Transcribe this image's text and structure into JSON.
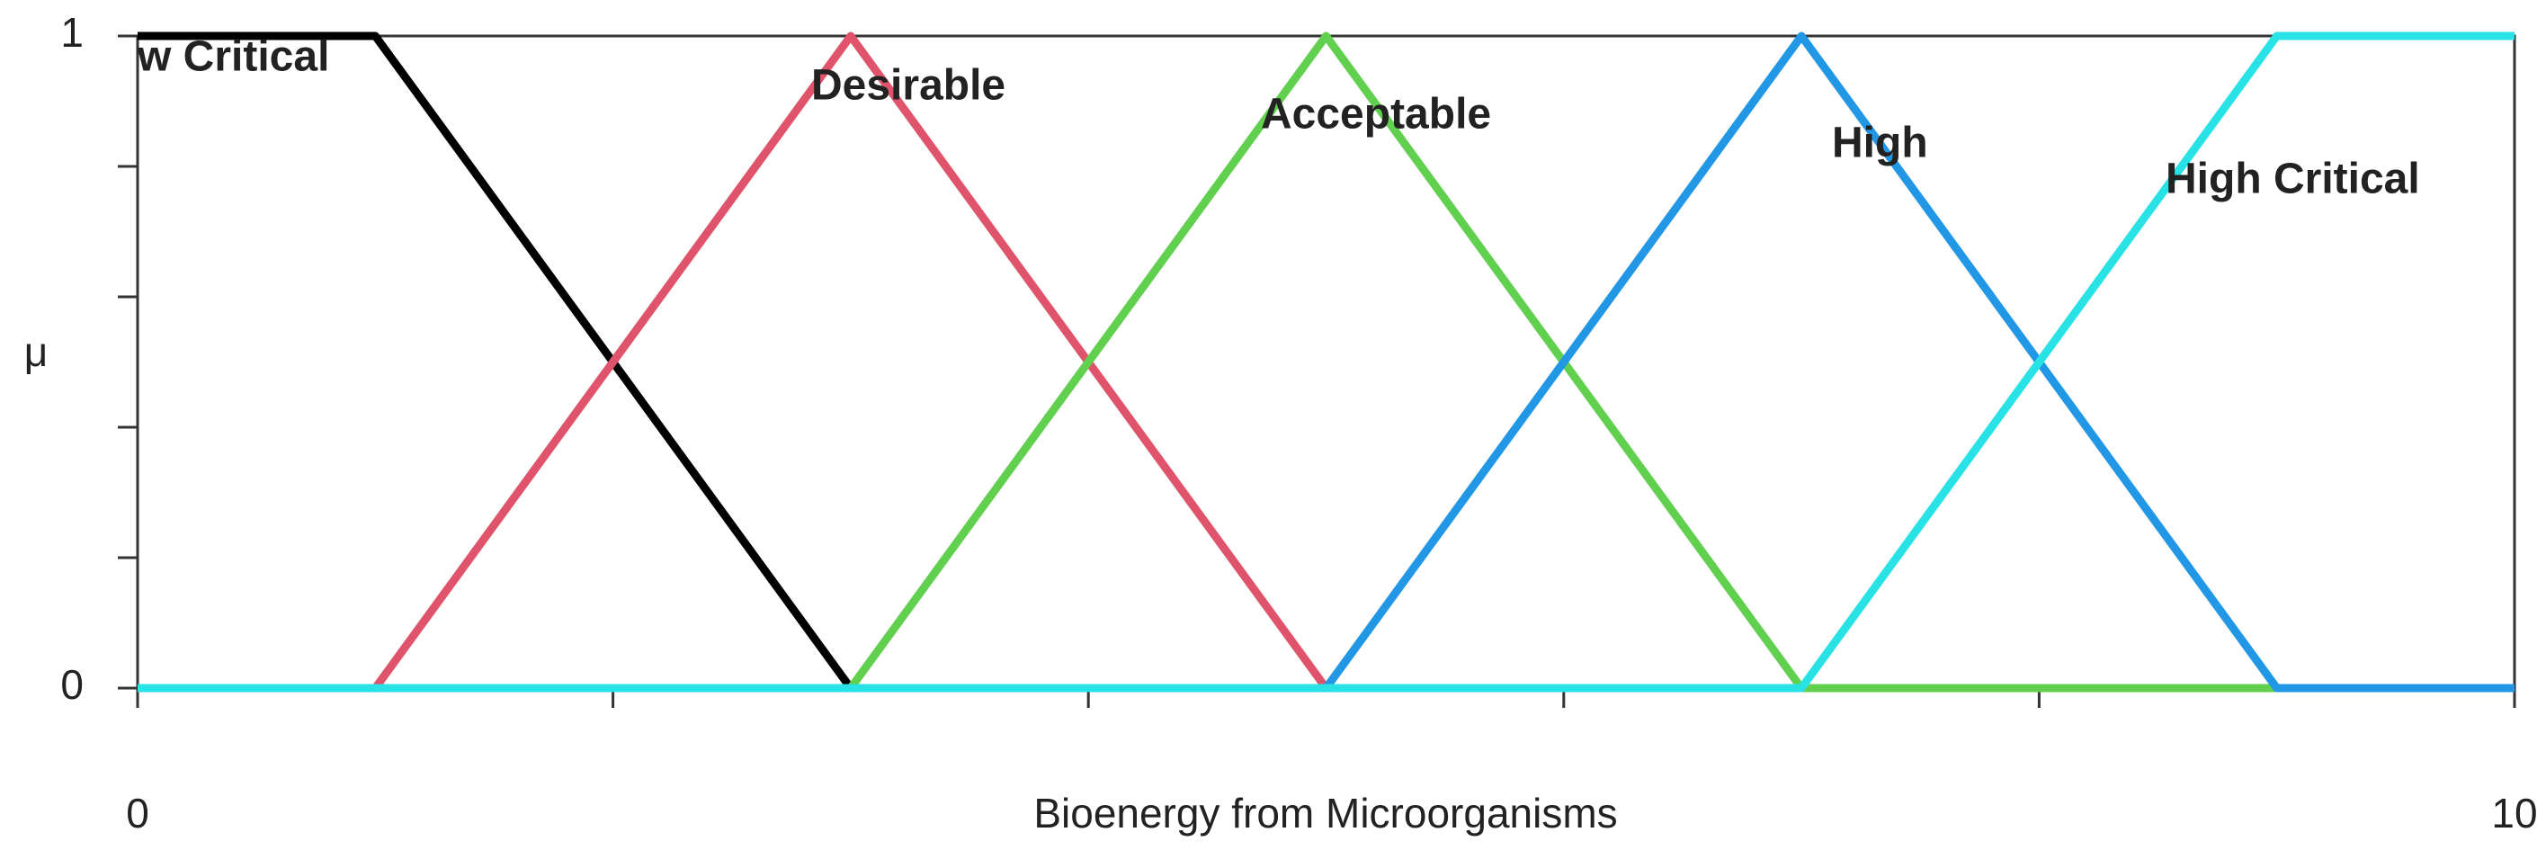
{
  "chart_data": {
    "type": "line",
    "x_label": "Bioenergy from Microorganisms",
    "y_label": "μ",
    "xlim": [
      0,
      10
    ],
    "xticks": [
      0,
      {
        "value": 2,
        "label": null
      },
      {
        "value": 4,
        "label": null
      },
      {
        "value": 6,
        "label": null
      },
      {
        "value": 8,
        "label": null
      },
      10
    ],
    "ylim": [
      0,
      1
    ],
    "yticks": [
      0,
      {
        "value": 0.2,
        "label": null
      },
      {
        "value": 0.4,
        "label": null
      },
      {
        "value": 0.6,
        "label": null
      },
      {
        "value": 0.8,
        "label": null
      },
      1
    ],
    "series": [
      {
        "name": "w Critical",
        "color": "#000000",
        "x": [
          0,
          1,
          3,
          10
        ],
        "values": [
          1,
          1,
          0,
          0
        ]
      },
      {
        "name": "Desirable",
        "color": "#DF536B",
        "x": [
          0,
          1,
          3,
          5,
          10
        ],
        "values": [
          0,
          0,
          1,
          0,
          0
        ]
      },
      {
        "name": "Acceptable",
        "color": "#61D04F",
        "x": [
          0,
          3,
          5,
          7,
          10
        ],
        "values": [
          0,
          0,
          1,
          0,
          0
        ]
      },
      {
        "name": "High",
        "color": "#2297E6",
        "x": [
          0,
          5,
          7,
          9,
          10
        ],
        "values": [
          0,
          0,
          1,
          0,
          0
        ]
      },
      {
        "name": "High Critical",
        "color": "#28E2E5",
        "x": [
          0,
          7,
          9,
          10
        ],
        "values": [
          0,
          0,
          1,
          1
        ]
      }
    ]
  }
}
